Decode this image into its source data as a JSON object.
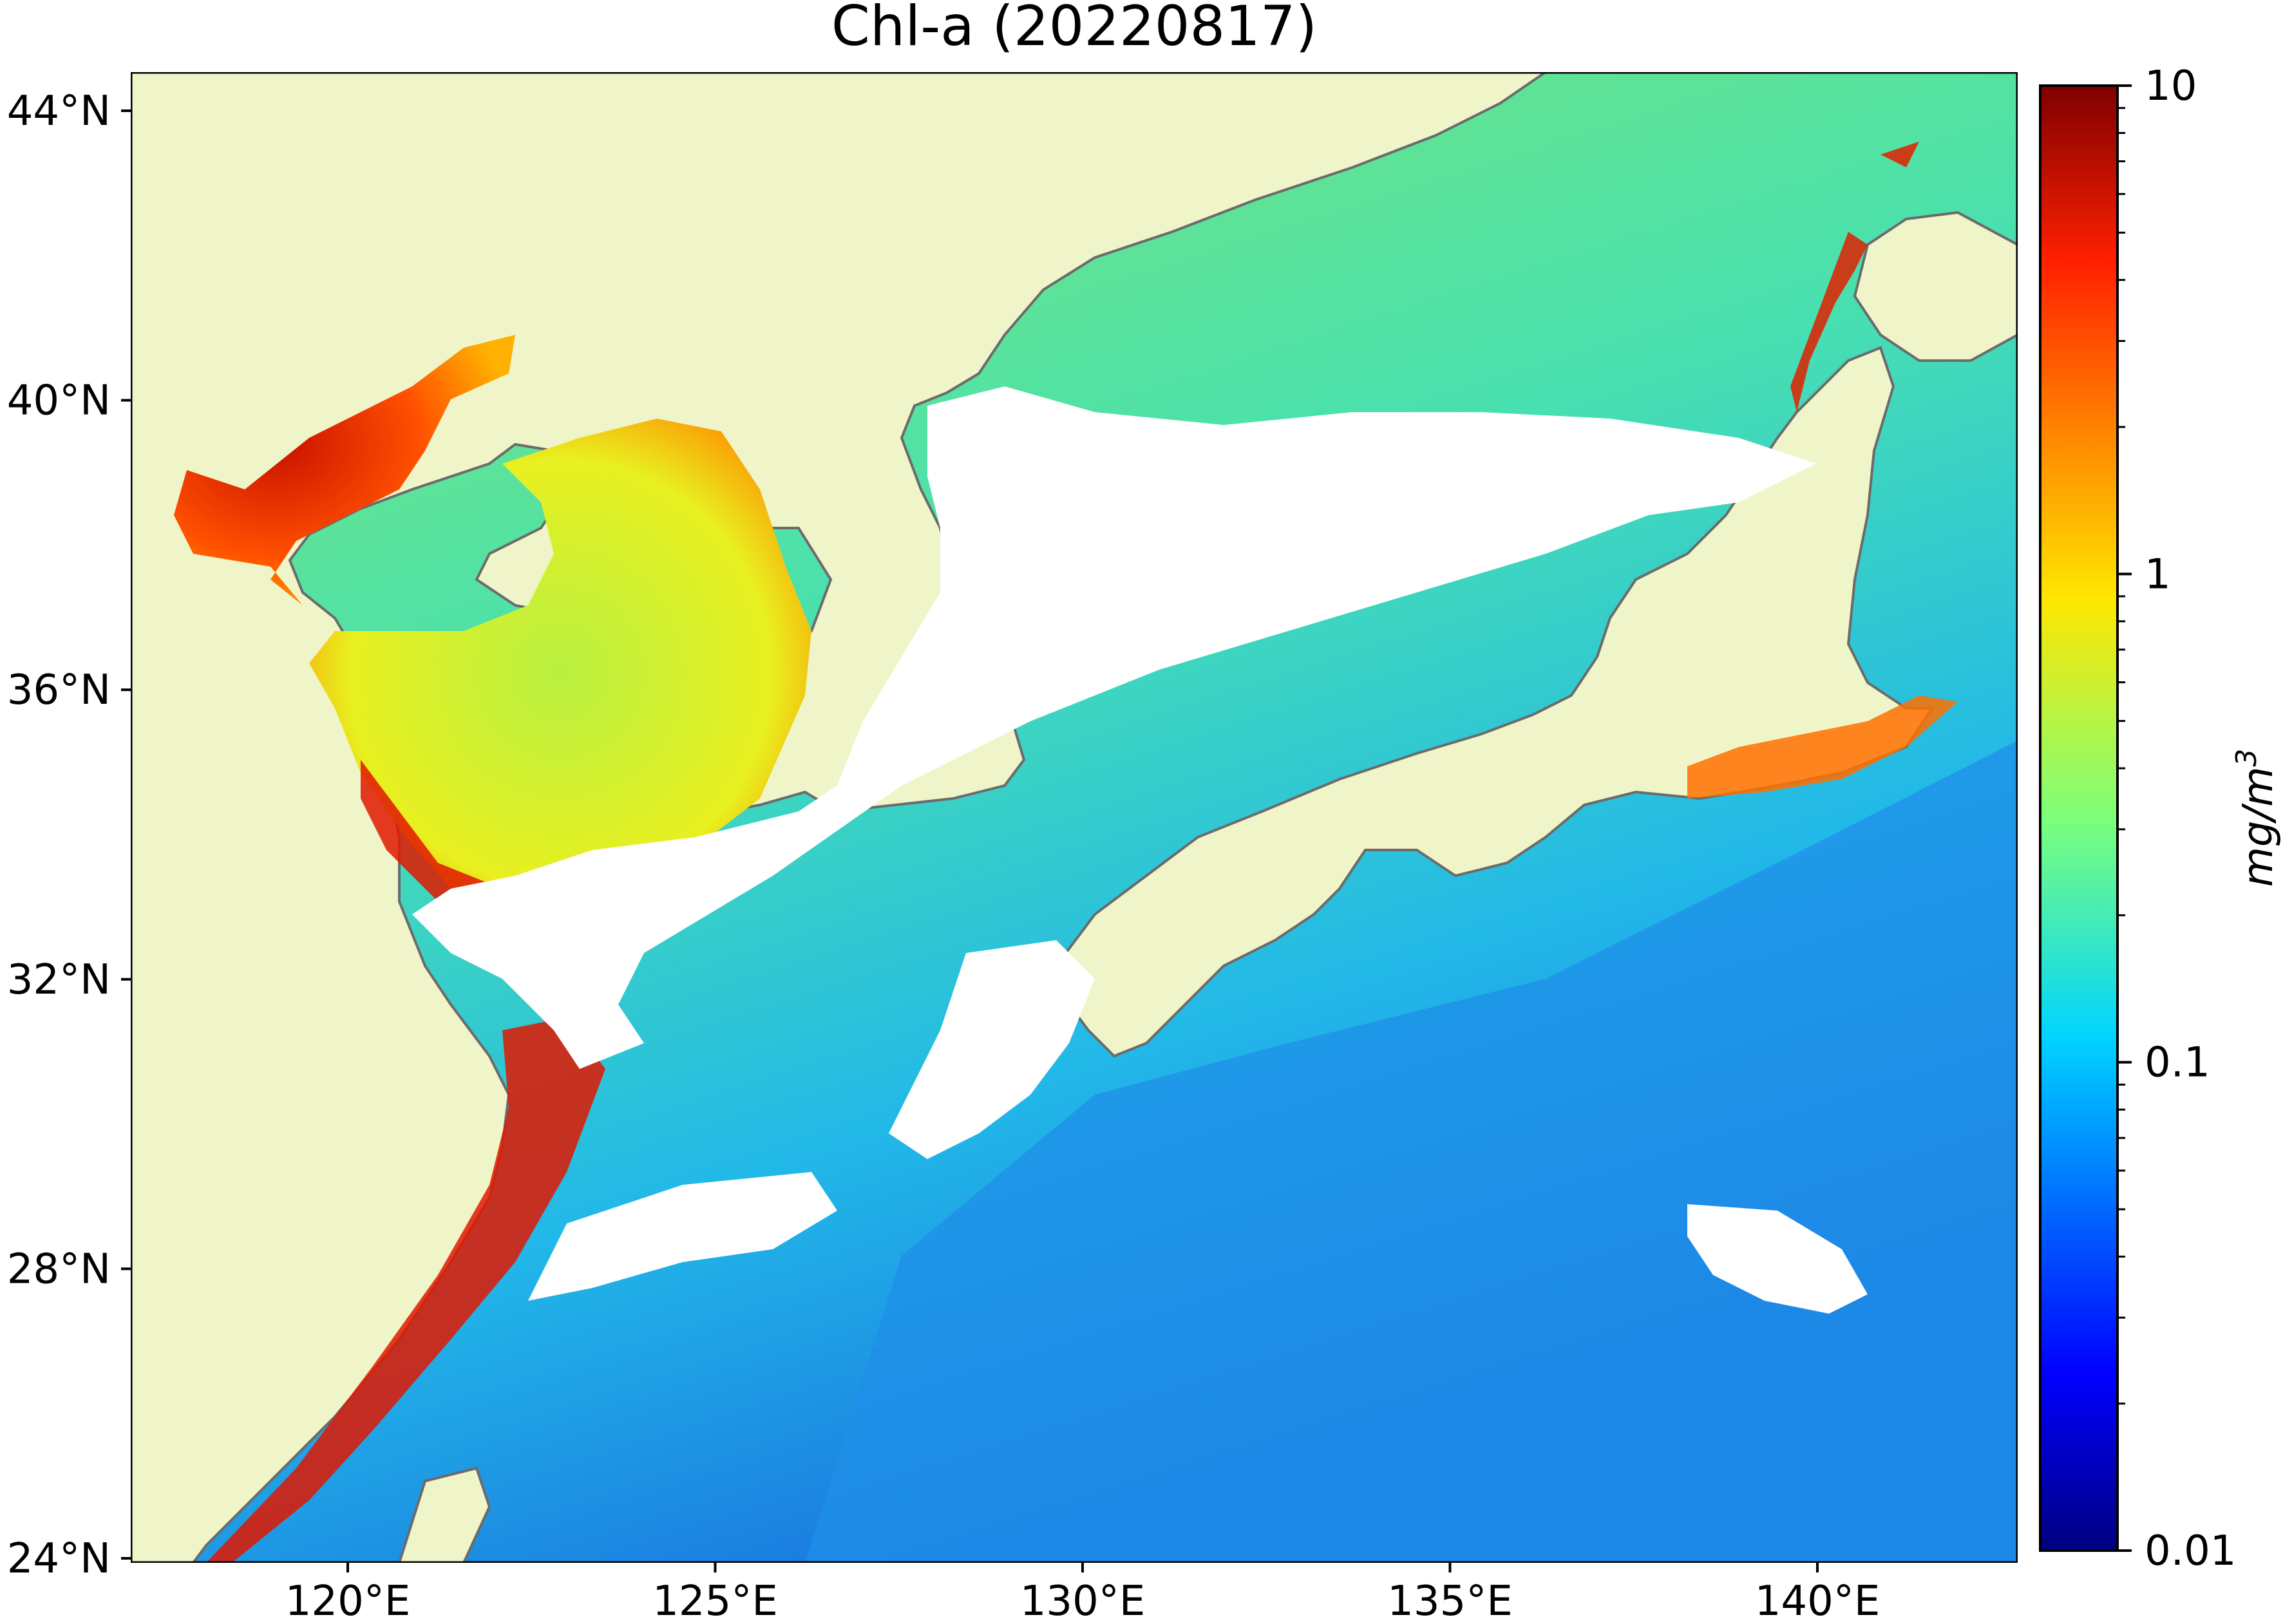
{
  "title": "Chl-a (20220817)",
  "map": {
    "lon_labels": [
      "120°E",
      "125°E",
      "130°E",
      "135°E",
      "140°E"
    ],
    "lat_labels": [
      "44°N",
      "40°N",
      "36°N",
      "32°N",
      "28°N",
      "24°N"
    ],
    "land_color": "#eff5c8",
    "cloud_color": "#ffffff",
    "coastline_color": "#6b6b6b"
  },
  "colorbar": {
    "label": "mg/m",
    "label_superscript": "3",
    "tick_labels": [
      "10",
      "1",
      "0.1",
      "0.01"
    ],
    "scale": "log",
    "range": [
      0.01,
      10
    ],
    "colormap": "jet"
  }
}
